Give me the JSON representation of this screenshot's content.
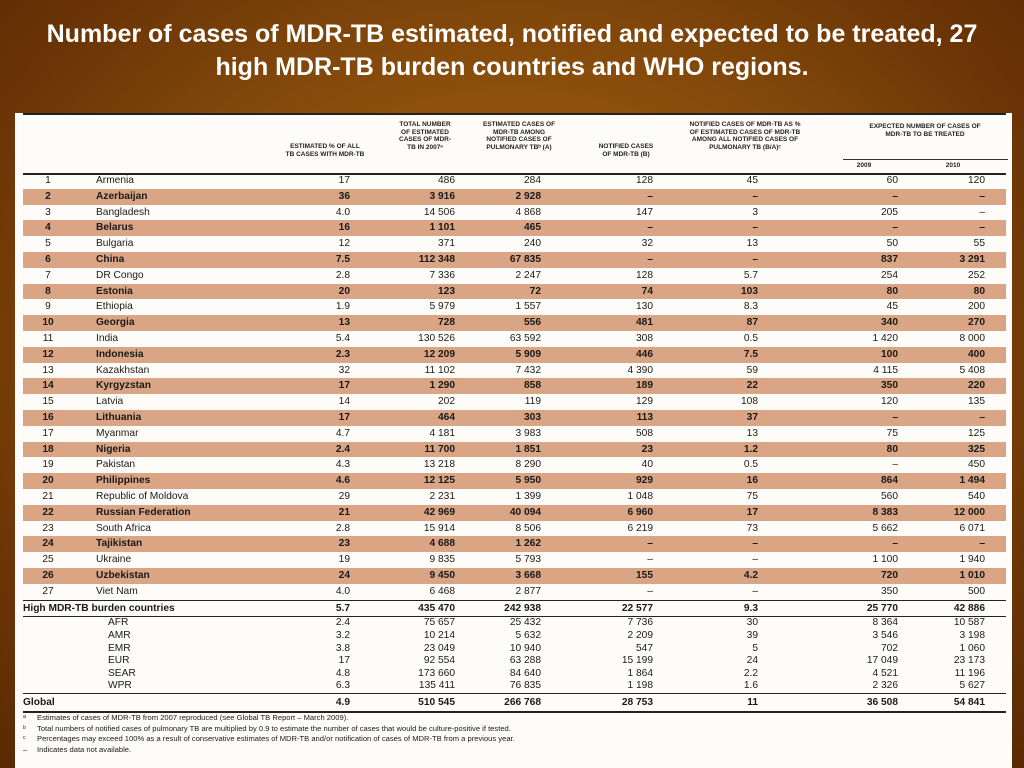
{
  "title": "Number of cases of MDR-TB estimated, notified and expected to be treated, 27 high MDR-TB burden countries and WHO regions.",
  "headers": {
    "estimated_pct": "ESTIMATED % OF ALL TB CASES WITH MDR-TB",
    "total_estimated": "TOTAL NUMBER OF ESTIMATED CASES OF MDR-TB IN 2007ᵃ",
    "estimated_among_notified": "ESTIMATED CASES OF MDR-TB AMONG NOTIFIED CASES OF PULMONARY TBᵇ (A)",
    "notified": "NOTIFIED CASES OF MDR-TB (B)",
    "notified_pct": "NOTIFIED CASES OF MDR-TB AS % OF ESTIMATED CASES OF MDR-TB AMONG ALL NOTIFIED CASES OF PULMONARY TB (B/A)ᶜ",
    "expected": "EXPECTED NUMBER OF CASES OF MDR-TB TO BE TREATED",
    "year1": "2009",
    "year2": "2010"
  },
  "countries": [
    [
      "1",
      "Armenia",
      "17",
      "486",
      "284",
      "128",
      "45",
      "60",
      "120"
    ],
    [
      "2",
      "Azerbaijan",
      "36",
      "3 916",
      "2 928",
      "–",
      "–",
      "–",
      "–"
    ],
    [
      "3",
      "Bangladesh",
      "4.0",
      "14 506",
      "4 868",
      "147",
      "3",
      "205",
      "–"
    ],
    [
      "4",
      "Belarus",
      "16",
      "1 101",
      "465",
      "–",
      "–",
      "–",
      "–"
    ],
    [
      "5",
      "Bulgaria",
      "12",
      "371",
      "240",
      "32",
      "13",
      "50",
      "55"
    ],
    [
      "6",
      "China",
      "7.5",
      "112 348",
      "67 835",
      "–",
      "–",
      "837",
      "3 291"
    ],
    [
      "7",
      "DR Congo",
      "2.8",
      "7 336",
      "2 247",
      "128",
      "5.7",
      "254",
      "252"
    ],
    [
      "8",
      "Estonia",
      "20",
      "123",
      "72",
      "74",
      "103",
      "80",
      "80"
    ],
    [
      "9",
      "Ethiopia",
      "1.9",
      "5 979",
      "1 557",
      "130",
      "8.3",
      "45",
      "200"
    ],
    [
      "10",
      "Georgia",
      "13",
      "728",
      "556",
      "481",
      "87",
      "340",
      "270"
    ],
    [
      "11",
      "India",
      "5.4",
      "130 526",
      "63 592",
      "308",
      "0.5",
      "1 420",
      "8 000"
    ],
    [
      "12",
      "Indonesia",
      "2.3",
      "12 209",
      "5 909",
      "446",
      "7.5",
      "100",
      "400"
    ],
    [
      "13",
      "Kazakhstan",
      "32",
      "11 102",
      "7 432",
      "4 390",
      "59",
      "4 115",
      "5 408"
    ],
    [
      "14",
      "Kyrgyzstan",
      "17",
      "1 290",
      "858",
      "189",
      "22",
      "350",
      "220"
    ],
    [
      "15",
      "Latvia",
      "14",
      "202",
      "119",
      "129",
      "108",
      "120",
      "135"
    ],
    [
      "16",
      "Lithuania",
      "17",
      "464",
      "303",
      "113",
      "37",
      "–",
      "–"
    ],
    [
      "17",
      "Myanmar",
      "4.7",
      "4 181",
      "3 983",
      "508",
      "13",
      "75",
      "125"
    ],
    [
      "18",
      "Nigeria",
      "2.4",
      "11 700",
      "1 851",
      "23",
      "1.2",
      "80",
      "325"
    ],
    [
      "19",
      "Pakistan",
      "4.3",
      "13 218",
      "8 290",
      "40",
      "0.5",
      "–",
      "450"
    ],
    [
      "20",
      "Philippines",
      "4.6",
      "12 125",
      "5 950",
      "929",
      "16",
      "864",
      "1 494"
    ],
    [
      "21",
      "Republic of Moldova",
      "29",
      "2 231",
      "1 399",
      "1 048",
      "75",
      "560",
      "540"
    ],
    [
      "22",
      "Russian Federation",
      "21",
      "42 969",
      "40 094",
      "6 960",
      "17",
      "8 383",
      "12 000"
    ],
    [
      "23",
      "South Africa",
      "2.8",
      "15 914",
      "8 506",
      "6 219",
      "73",
      "5 662",
      "6 071"
    ],
    [
      "24",
      "Tajikistan",
      "23",
      "4 688",
      "1 262",
      "–",
      "–",
      "–",
      "–"
    ],
    [
      "25",
      "Ukraine",
      "19",
      "9 835",
      "5 793",
      "–",
      "–",
      "1 100",
      "1 940"
    ],
    [
      "26",
      "Uzbekistan",
      "24",
      "9 450",
      "3 668",
      "155",
      "4.2",
      "720",
      "1 010"
    ],
    [
      "27",
      "Viet Nam",
      "4.0",
      "6 468",
      "2 877",
      "–",
      "–",
      "350",
      "500"
    ]
  ],
  "summary": [
    "High MDR-TB burden countries",
    "5.7",
    "435 470",
    "242 938",
    "22 577",
    "9.3",
    "25 770",
    "42 886"
  ],
  "regions": [
    [
      "AFR",
      "2.4",
      "75 657",
      "25 432",
      "7 736",
      "30",
      "8 364",
      "10 587"
    ],
    [
      "AMR",
      "3.2",
      "10 214",
      "5 632",
      "2 209",
      "39",
      "3 546",
      "3 198"
    ],
    [
      "EMR",
      "3.8",
      "23 049",
      "10 940",
      "547",
      "5",
      "702",
      "1 060"
    ],
    [
      "EUR",
      "17",
      "92 554",
      "63 288",
      "15 199",
      "24",
      "17 049",
      "23 173"
    ],
    [
      "SEAR",
      "4.8",
      "173 660",
      "84 640",
      "1 864",
      "2.2",
      "4 521",
      "11 196"
    ],
    [
      "WPR",
      "6.3",
      "135 411",
      "76 835",
      "1 198",
      "1.6",
      "2 326",
      "5 627"
    ]
  ],
  "global": [
    "Global",
    "4.9",
    "510 545",
    "266 768",
    "28 753",
    "11",
    "36 508",
    "54 841"
  ],
  "notes": [
    {
      "mark": "ᵃ",
      "text": "Estimates of cases of MDR-TB from 2007 reproduced (see Global TB Report – March 2009)."
    },
    {
      "mark": "ᵇ",
      "text": "Total numbers of notified cases of pulmonary TB are multiplied by 0.9 to estimate the number of cases that would be culture-positive if tested."
    },
    {
      "mark": "ᶜ",
      "text": "Percentages may exceed 100% as a result of conservative estimates of MDR-TB and/or notification of cases of MDR-TB from a previous year."
    },
    {
      "mark": "–",
      "text": "Indicates data not available."
    }
  ]
}
